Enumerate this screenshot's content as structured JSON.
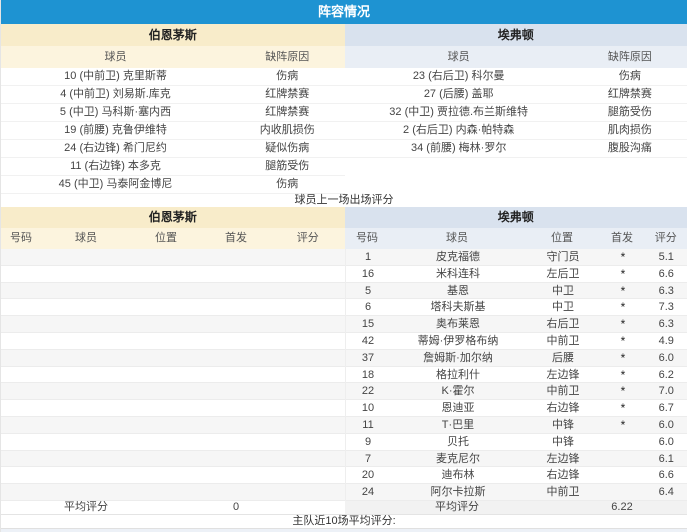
{
  "title": "阵容情况",
  "colors": {
    "title_bar": "#1e93d2",
    "home_header": "#f8ecca",
    "home_subheader": "#fcf4de",
    "away_header": "#d9e2ee",
    "away_subheader": "#e9eef5"
  },
  "absent": {
    "home_team": "伯恩茅斯",
    "away_team": "埃弗顿",
    "player_col": "球员",
    "reason_col": "缺阵原因",
    "home_rows": [
      {
        "player": "10 (中前卫) 克里斯蒂",
        "reason": "伤病"
      },
      {
        "player": "4 (中前卫) 刘易斯.库克",
        "reason": "红牌禁赛"
      },
      {
        "player": "5 (中卫) 马科斯·塞内西",
        "reason": "红牌禁赛"
      },
      {
        "player": "19 (前腰) 克鲁伊维特",
        "reason": "内收肌损伤"
      },
      {
        "player": "24 (右边锋) 希门尼约",
        "reason": "疑似伤病"
      },
      {
        "player": "11 (右边锋) 本多克",
        "reason": "腿筋受伤"
      },
      {
        "player": "45 (中卫) 马泰阿金博尼",
        "reason": "伤病"
      }
    ],
    "away_rows": [
      {
        "player": "23 (右后卫) 科尔曼",
        "reason": "伤病"
      },
      {
        "player": "27 (后腰) 盖耶",
        "reason": "红牌禁赛"
      },
      {
        "player": "32 (中卫) 贾拉德.布兰斯维特",
        "reason": "腿筋受伤"
      },
      {
        "player": "2 (右后卫) 内森·帕特森",
        "reason": "肌肉损伤"
      },
      {
        "player": "34 (前腰) 梅林·罗尔",
        "reason": "腹股沟痛"
      }
    ]
  },
  "ratings_caption": "球员上一场出场评分",
  "ratings": {
    "home_team": "伯恩茅斯",
    "away_team": "埃弗顿",
    "headers": [
      "号码",
      "球员",
      "位置",
      "首发",
      "评分"
    ],
    "home_rows": [],
    "away_rows": [
      {
        "no": "1",
        "player": "皮克福德",
        "pos": "守门员",
        "start": "*",
        "rating": "5.1"
      },
      {
        "no": "16",
        "player": "米科连科",
        "pos": "左后卫",
        "start": "*",
        "rating": "6.6"
      },
      {
        "no": "5",
        "player": "基恩",
        "pos": "中卫",
        "start": "*",
        "rating": "6.3"
      },
      {
        "no": "6",
        "player": "塔科夫斯基",
        "pos": "中卫",
        "start": "*",
        "rating": "7.3"
      },
      {
        "no": "15",
        "player": "奥布莱恩",
        "pos": "右后卫",
        "start": "*",
        "rating": "6.3"
      },
      {
        "no": "42",
        "player": "蒂姆·伊罗格布纳",
        "pos": "中前卫",
        "start": "*",
        "rating": "4.9"
      },
      {
        "no": "37",
        "player": "詹姆斯·加尔纳",
        "pos": "后腰",
        "start": "*",
        "rating": "6.0"
      },
      {
        "no": "18",
        "player": "格拉利什",
        "pos": "左边锋",
        "start": "*",
        "rating": "6.2"
      },
      {
        "no": "22",
        "player": "K·霍尔",
        "pos": "中前卫",
        "start": "*",
        "rating": "7.0"
      },
      {
        "no": "10",
        "player": "恩迪亚",
        "pos": "右边锋",
        "start": "*",
        "rating": "6.7"
      },
      {
        "no": "11",
        "player": "T·巴里",
        "pos": "中锋",
        "start": "*",
        "rating": "6.0"
      },
      {
        "no": "9",
        "player": "贝托",
        "pos": "中锋",
        "start": "",
        "rating": "6.0"
      },
      {
        "no": "7",
        "player": "麦克尼尔",
        "pos": "左边锋",
        "start": "",
        "rating": "6.1"
      },
      {
        "no": "20",
        "player": "迪布林",
        "pos": "右边锋",
        "start": "",
        "rating": "6.6"
      },
      {
        "no": "24",
        "player": "阿尔卡拉斯",
        "pos": "中前卫",
        "start": "",
        "rating": "6.4"
      }
    ],
    "avg_label": "平均评分",
    "home_avg": "0",
    "away_avg": "6.22"
  },
  "footer_note": "主队近10场平均评分:"
}
